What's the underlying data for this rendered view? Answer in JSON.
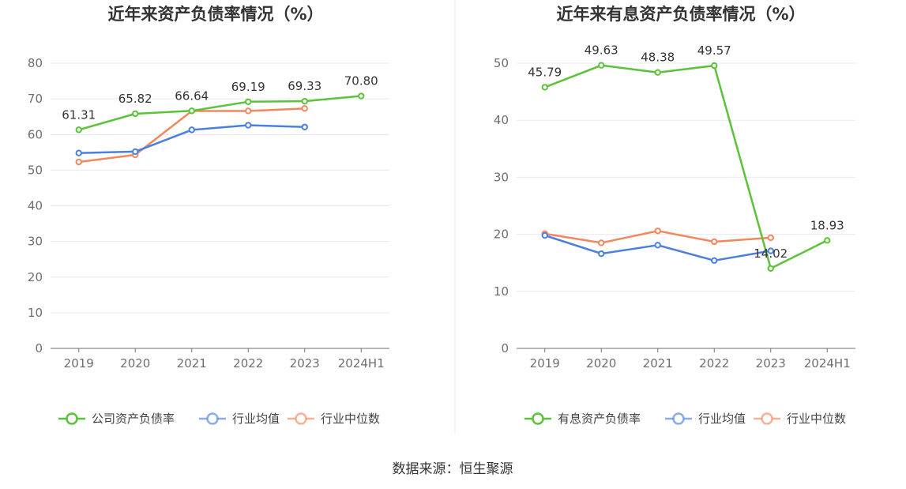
{
  "source_label": "数据来源：恒生聚源",
  "colors": {
    "company": "#5ac33a",
    "avg": "#4a7fe0",
    "median": "#f2875e"
  },
  "chart_data": [
    {
      "type": "line",
      "title": "近年来资产负债率情况（%）",
      "categories": [
        "2019",
        "2020",
        "2021",
        "2022",
        "2023",
        "2024H1"
      ],
      "ylim": [
        0,
        80
      ],
      "yticks": [
        "0",
        "10",
        "20",
        "30",
        "40",
        "50",
        "60",
        "70",
        "80"
      ],
      "grid": true,
      "legend_position": "bottom",
      "series": [
        {
          "name": "公司资产负债率",
          "key": "company",
          "values": [
            61.31,
            65.82,
            66.64,
            69.19,
            69.33,
            70.8
          ],
          "labels": [
            "61.31",
            "65.82",
            "66.64",
            "69.19",
            "69.33",
            "70.80"
          ]
        },
        {
          "name": "行业均值",
          "key": "avg",
          "values": [
            54.8,
            55.2,
            61.3,
            62.6,
            62.1,
            null
          ]
        },
        {
          "name": "行业中位数",
          "key": "median",
          "values": [
            52.3,
            54.3,
            66.6,
            66.6,
            67.3,
            null
          ]
        }
      ]
    },
    {
      "type": "line",
      "title": "近年来有息资产负债率情况（%）",
      "categories": [
        "2019",
        "2020",
        "2021",
        "2022",
        "2023",
        "2024H1"
      ],
      "ylim": [
        0,
        50
      ],
      "yticks": [
        "0",
        "10",
        "20",
        "30",
        "40",
        "50"
      ],
      "grid": true,
      "legend_position": "bottom",
      "series": [
        {
          "name": "有息资产负债率",
          "key": "company",
          "values": [
            45.79,
            49.63,
            48.38,
            49.57,
            14.02,
            18.93
          ],
          "labels": [
            "45.79",
            "49.63",
            "48.38",
            "49.57",
            "14.02",
            "18.93"
          ]
        },
        {
          "name": "行业均值",
          "key": "avg",
          "values": [
            19.8,
            16.6,
            18.1,
            15.4,
            17.1,
            null
          ]
        },
        {
          "name": "行业中位数",
          "key": "median",
          "values": [
            20.1,
            18.5,
            20.6,
            18.7,
            19.4,
            null
          ]
        }
      ]
    }
  ]
}
